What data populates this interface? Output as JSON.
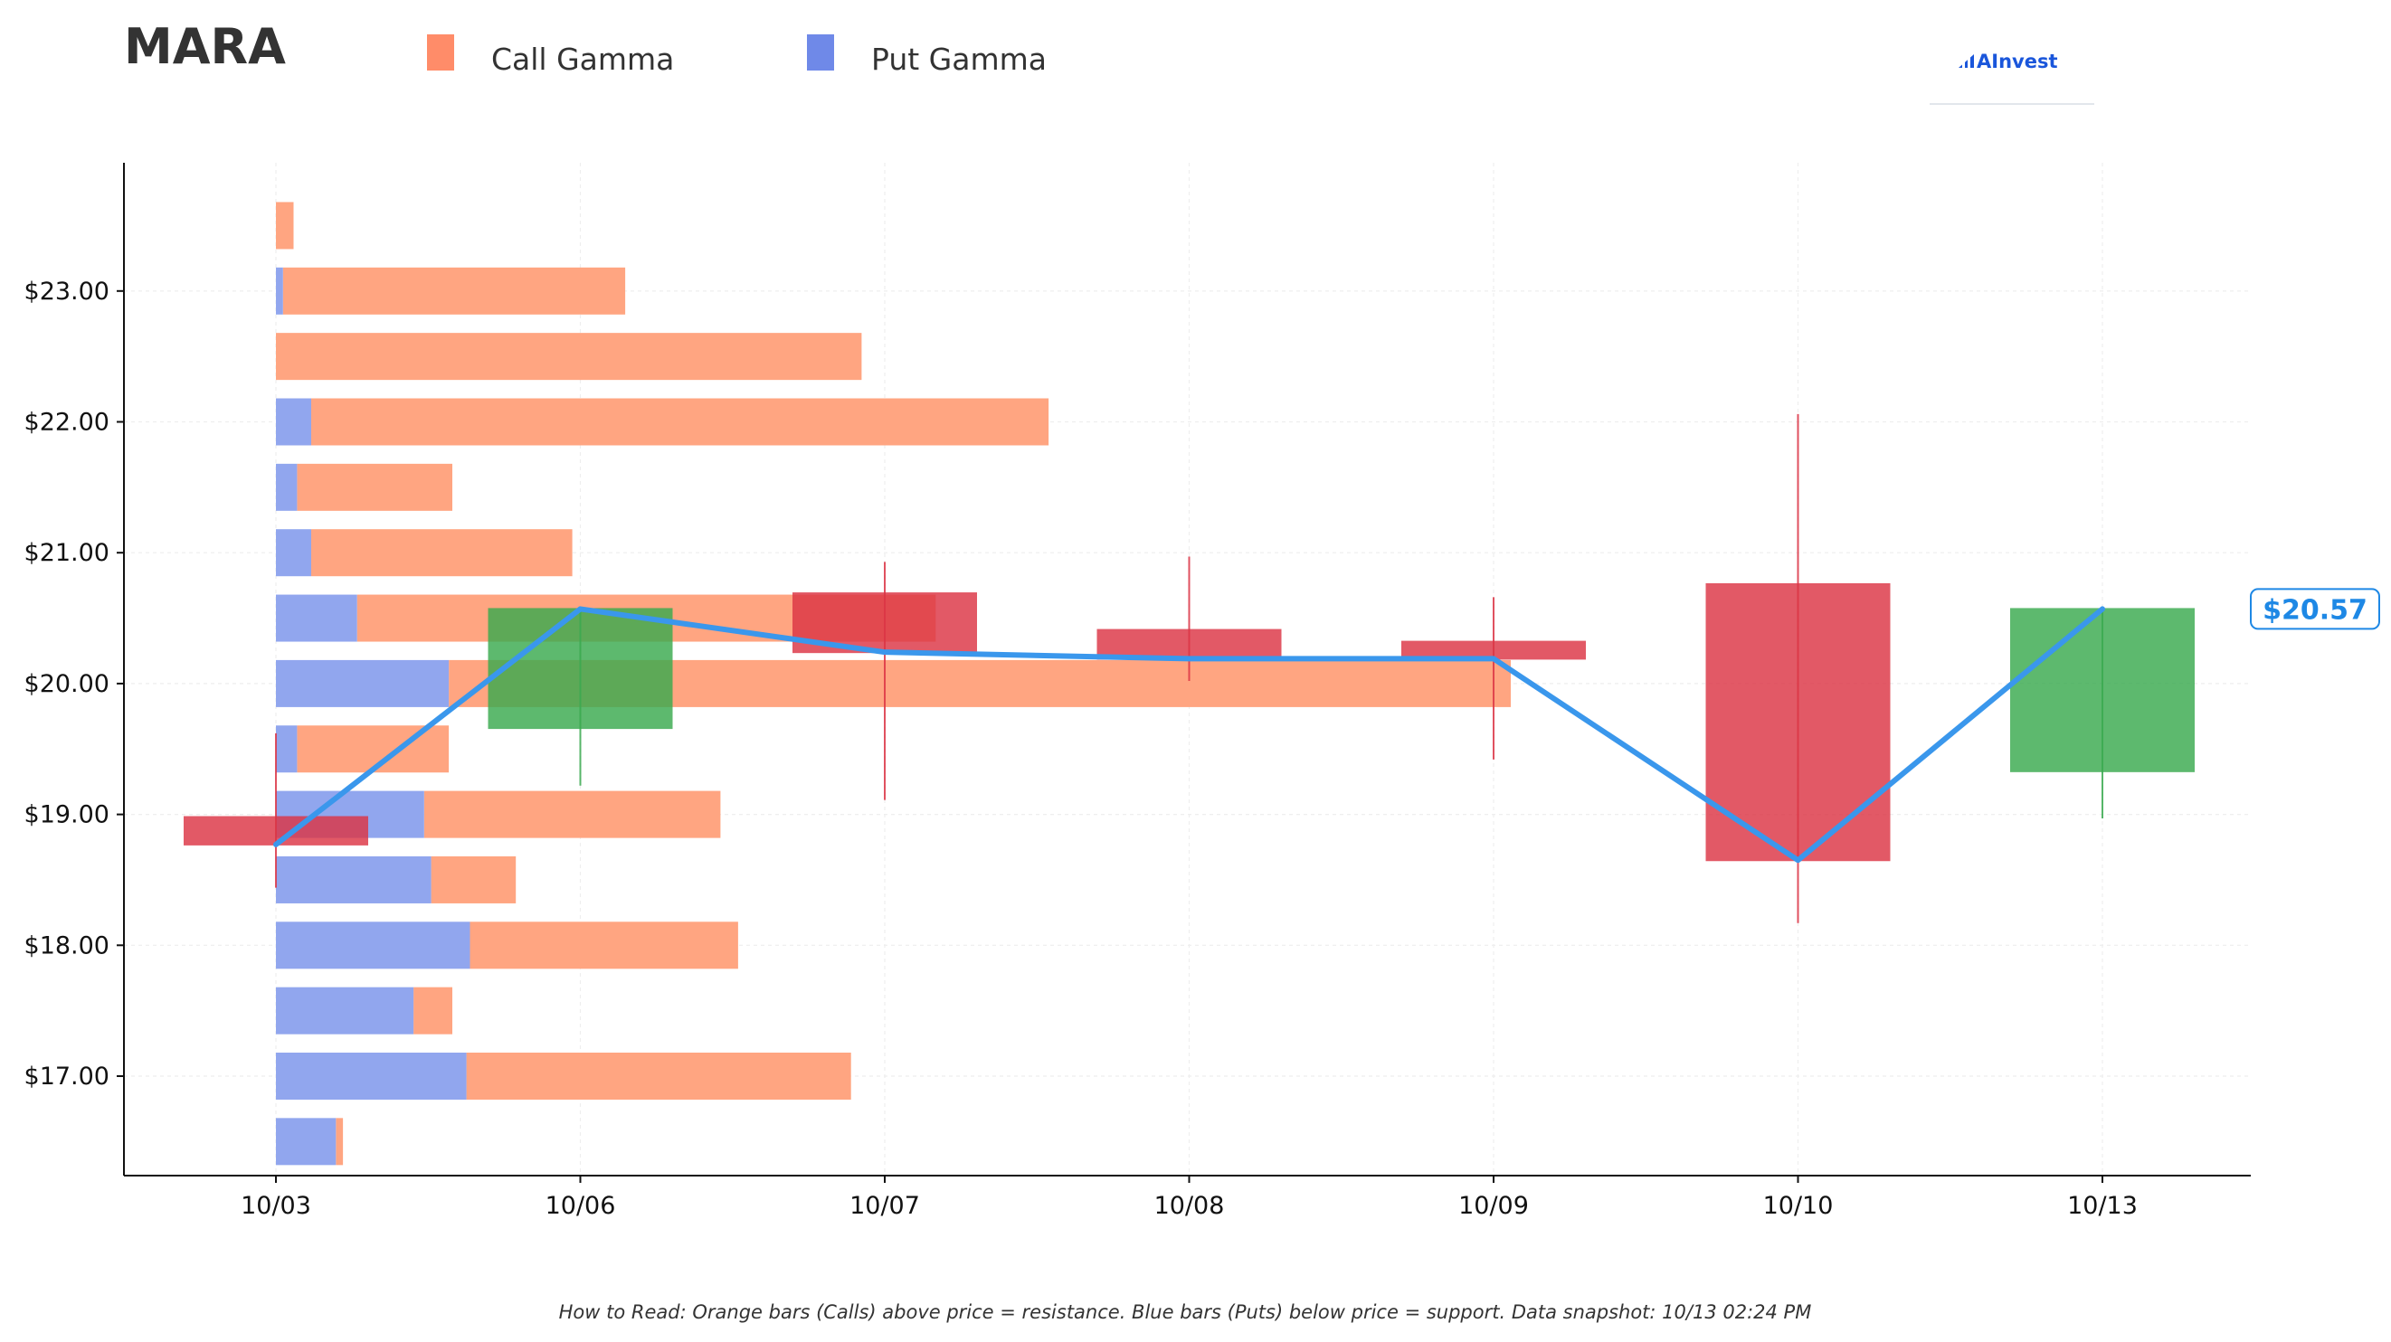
{
  "header": {
    "ticker": "MARA",
    "brand": "AInvest"
  },
  "footer": {
    "note": "How to Read: Orange bars (Calls) above price = resistance. Blue bars (Puts) below price = support. Data snapshot: 10/13 02:24 PM"
  },
  "colors": {
    "call": "#ffa07a",
    "call_legend": "#ff8c69",
    "put": "#8fa4ee",
    "put_legend": "#6f89e8",
    "up": "#3aaa4f",
    "down": "#dc3545",
    "line": "#3a97ec",
    "brand": "#1a56db"
  },
  "chart_data": {
    "type": "candlestick-with-gamma-bars",
    "legend": [
      {
        "name": "Call Gamma",
        "color": "#ff8c69"
      },
      {
        "name": "Put Gamma",
        "color": "#6f89e8"
      }
    ],
    "x_categories": [
      "10/03",
      "10/06",
      "10/07",
      "10/08",
      "10/09",
      "10/10",
      "10/13"
    ],
    "y_ticks": [
      17.0,
      18.0,
      19.0,
      20.0,
      21.0,
      22.0,
      23.0
    ],
    "y_tick_labels": [
      "$17.00",
      "$18.00",
      "$19.00",
      "$20.00",
      "$21.00",
      "$22.00",
      "$23.00"
    ],
    "ylim": [
      16.25,
      24.0
    ],
    "grid": true,
    "gamma_bars": [
      {
        "strike": 16.5,
        "call": 0.02,
        "put": 0.17
      },
      {
        "strike": 17.0,
        "call": 1.09,
        "put": 0.54
      },
      {
        "strike": 17.5,
        "call": 0.11,
        "put": 0.39
      },
      {
        "strike": 18.0,
        "call": 0.76,
        "put": 0.55
      },
      {
        "strike": 18.5,
        "call": 0.24,
        "put": 0.44
      },
      {
        "strike": 19.0,
        "call": 0.84,
        "put": 0.42
      },
      {
        "strike": 19.5,
        "call": 0.43,
        "put": 0.06
      },
      {
        "strike": 20.0,
        "call": 3.01,
        "put": 0.49
      },
      {
        "strike": 20.5,
        "call": 1.64,
        "put": 0.23
      },
      {
        "strike": 21.0,
        "call": 0.74,
        "put": 0.1
      },
      {
        "strike": 21.5,
        "call": 0.44,
        "put": 0.06
      },
      {
        "strike": 22.0,
        "call": 2.09,
        "put": 0.1
      },
      {
        "strike": 22.5,
        "call": 1.66,
        "put": 0.0
      },
      {
        "strike": 23.0,
        "call": 0.97,
        "put": 0.02
      },
      {
        "strike": 23.5,
        "call": 0.05,
        "put": 0.0
      }
    ],
    "candles": [
      {
        "date": "10/03",
        "open": 18.98,
        "close": 18.77,
        "high": 19.62,
        "low": 18.44
      },
      {
        "date": "10/06",
        "open": 19.66,
        "close": 20.57,
        "high": 20.57,
        "low": 19.22
      },
      {
        "date": "10/07",
        "open": 20.69,
        "close": 20.24,
        "high": 20.93,
        "low": 19.11
      },
      {
        "date": "10/08",
        "open": 20.41,
        "close": 20.19,
        "high": 20.97,
        "low": 20.02
      },
      {
        "date": "10/09",
        "open": 20.32,
        "close": 20.19,
        "high": 20.66,
        "low": 19.42
      },
      {
        "date": "10/10",
        "open": 20.76,
        "close": 18.65,
        "high": 22.06,
        "low": 18.17
      },
      {
        "date": "10/13",
        "open": 19.33,
        "close": 20.57,
        "high": 20.57,
        "low": 18.97
      }
    ],
    "close_line": [
      18.77,
      20.57,
      20.24,
      20.19,
      20.19,
      18.65,
      20.57
    ],
    "last_price_label": "$20.57"
  }
}
